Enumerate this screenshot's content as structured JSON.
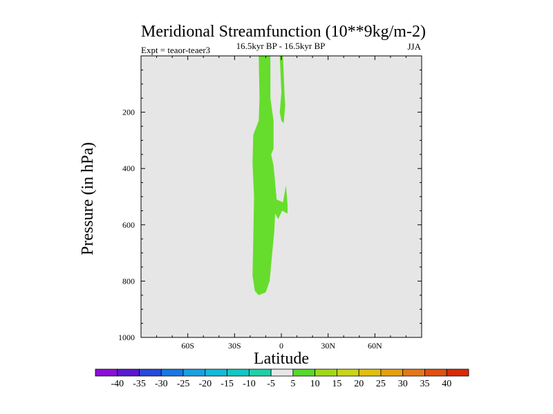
{
  "chart_data": {
    "type": "contour",
    "title": "Meridional Streamfunction (10**9kg/m-2)",
    "subtitle_left": "Expt = teaor-teaer3",
    "subtitle_center": "16.5kyr BP - 16.5kyr BP",
    "subtitle_right": "JJA",
    "xlabel": "Latitude",
    "ylabel": "Pressure (in hPa)",
    "xlim": [
      -90,
      90
    ],
    "ylim": [
      1000,
      0
    ],
    "x_ticks": [
      {
        "value": -60,
        "label": "60S"
      },
      {
        "value": -30,
        "label": "30S"
      },
      {
        "value": 0,
        "label": "0"
      },
      {
        "value": 30,
        "label": "30N"
      },
      {
        "value": 60,
        "label": "60N"
      }
    ],
    "y_ticks": [
      {
        "value": 200,
        "label": "200"
      },
      {
        "value": 400,
        "label": "400"
      },
      {
        "value": 600,
        "label": "600"
      },
      {
        "value": 800,
        "label": "800"
      },
      {
        "value": 1000,
        "label": "1000"
      }
    ],
    "background_color": "#e6e6e6",
    "contour_levels": [
      -40,
      -35,
      -30,
      -25,
      -20,
      -15,
      -10,
      -5,
      5,
      10,
      15,
      20,
      25,
      30,
      35,
      40
    ],
    "colorbar_colors": [
      "#8a10d8",
      "#5a18d0",
      "#2848d8",
      "#1878e0",
      "#1aa0e0",
      "#14b8d8",
      "#12c8c0",
      "#1ed0a8",
      "#e6e6e6",
      "#58d82a",
      "#a0d818",
      "#cad418",
      "#e0c010",
      "#e4a010",
      "#e47818",
      "#e05010",
      "#d82a0a"
    ],
    "filled_regions": [
      {
        "level_range": "5 to 10",
        "color": "#66dd2c",
        "outline": [
          {
            "lat": -14.5,
            "p": 850
          },
          {
            "lat": -17,
            "p": 835
          },
          {
            "lat": -18.5,
            "p": 780
          },
          {
            "lat": -18,
            "p": 650
          },
          {
            "lat": -17.5,
            "p": 500
          },
          {
            "lat": -18.5,
            "p": 380
          },
          {
            "lat": -18,
            "p": 280
          },
          {
            "lat": -14.5,
            "p": 230
          },
          {
            "lat": -14,
            "p": 150
          },
          {
            "lat": -14.5,
            "p": 0
          },
          {
            "lat": -7,
            "p": 0
          },
          {
            "lat": -7,
            "p": 150
          },
          {
            "lat": -5,
            "p": 230
          },
          {
            "lat": -5,
            "p": 330
          },
          {
            "lat": -6.5,
            "p": 350
          },
          {
            "lat": -5,
            "p": 390
          },
          {
            "lat": -4,
            "p": 450
          },
          {
            "lat": -3,
            "p": 510
          },
          {
            "lat": 1,
            "p": 520
          },
          {
            "lat": 3,
            "p": 460
          },
          {
            "lat": 4,
            "p": 530
          },
          {
            "lat": 4,
            "p": 560
          },
          {
            "lat": 0.5,
            "p": 550
          },
          {
            "lat": -2,
            "p": 580
          },
          {
            "lat": -4,
            "p": 560
          },
          {
            "lat": -4.5,
            "p": 620
          },
          {
            "lat": -6.5,
            "p": 740
          },
          {
            "lat": -7.5,
            "p": 800
          },
          {
            "lat": -10,
            "p": 840
          }
        ]
      },
      {
        "level_range": "5 to 10",
        "color": "#66dd2c",
        "outline": [
          {
            "lat": -1,
            "p": 0
          },
          {
            "lat": 1,
            "p": 0
          },
          {
            "lat": 1.5,
            "p": 60
          },
          {
            "lat": 2,
            "p": 130
          },
          {
            "lat": 2.5,
            "p": 175
          },
          {
            "lat": 1.5,
            "p": 240
          },
          {
            "lat": 0,
            "p": 230
          },
          {
            "lat": -1,
            "p": 200
          },
          {
            "lat": 0,
            "p": 130
          }
        ]
      }
    ]
  }
}
